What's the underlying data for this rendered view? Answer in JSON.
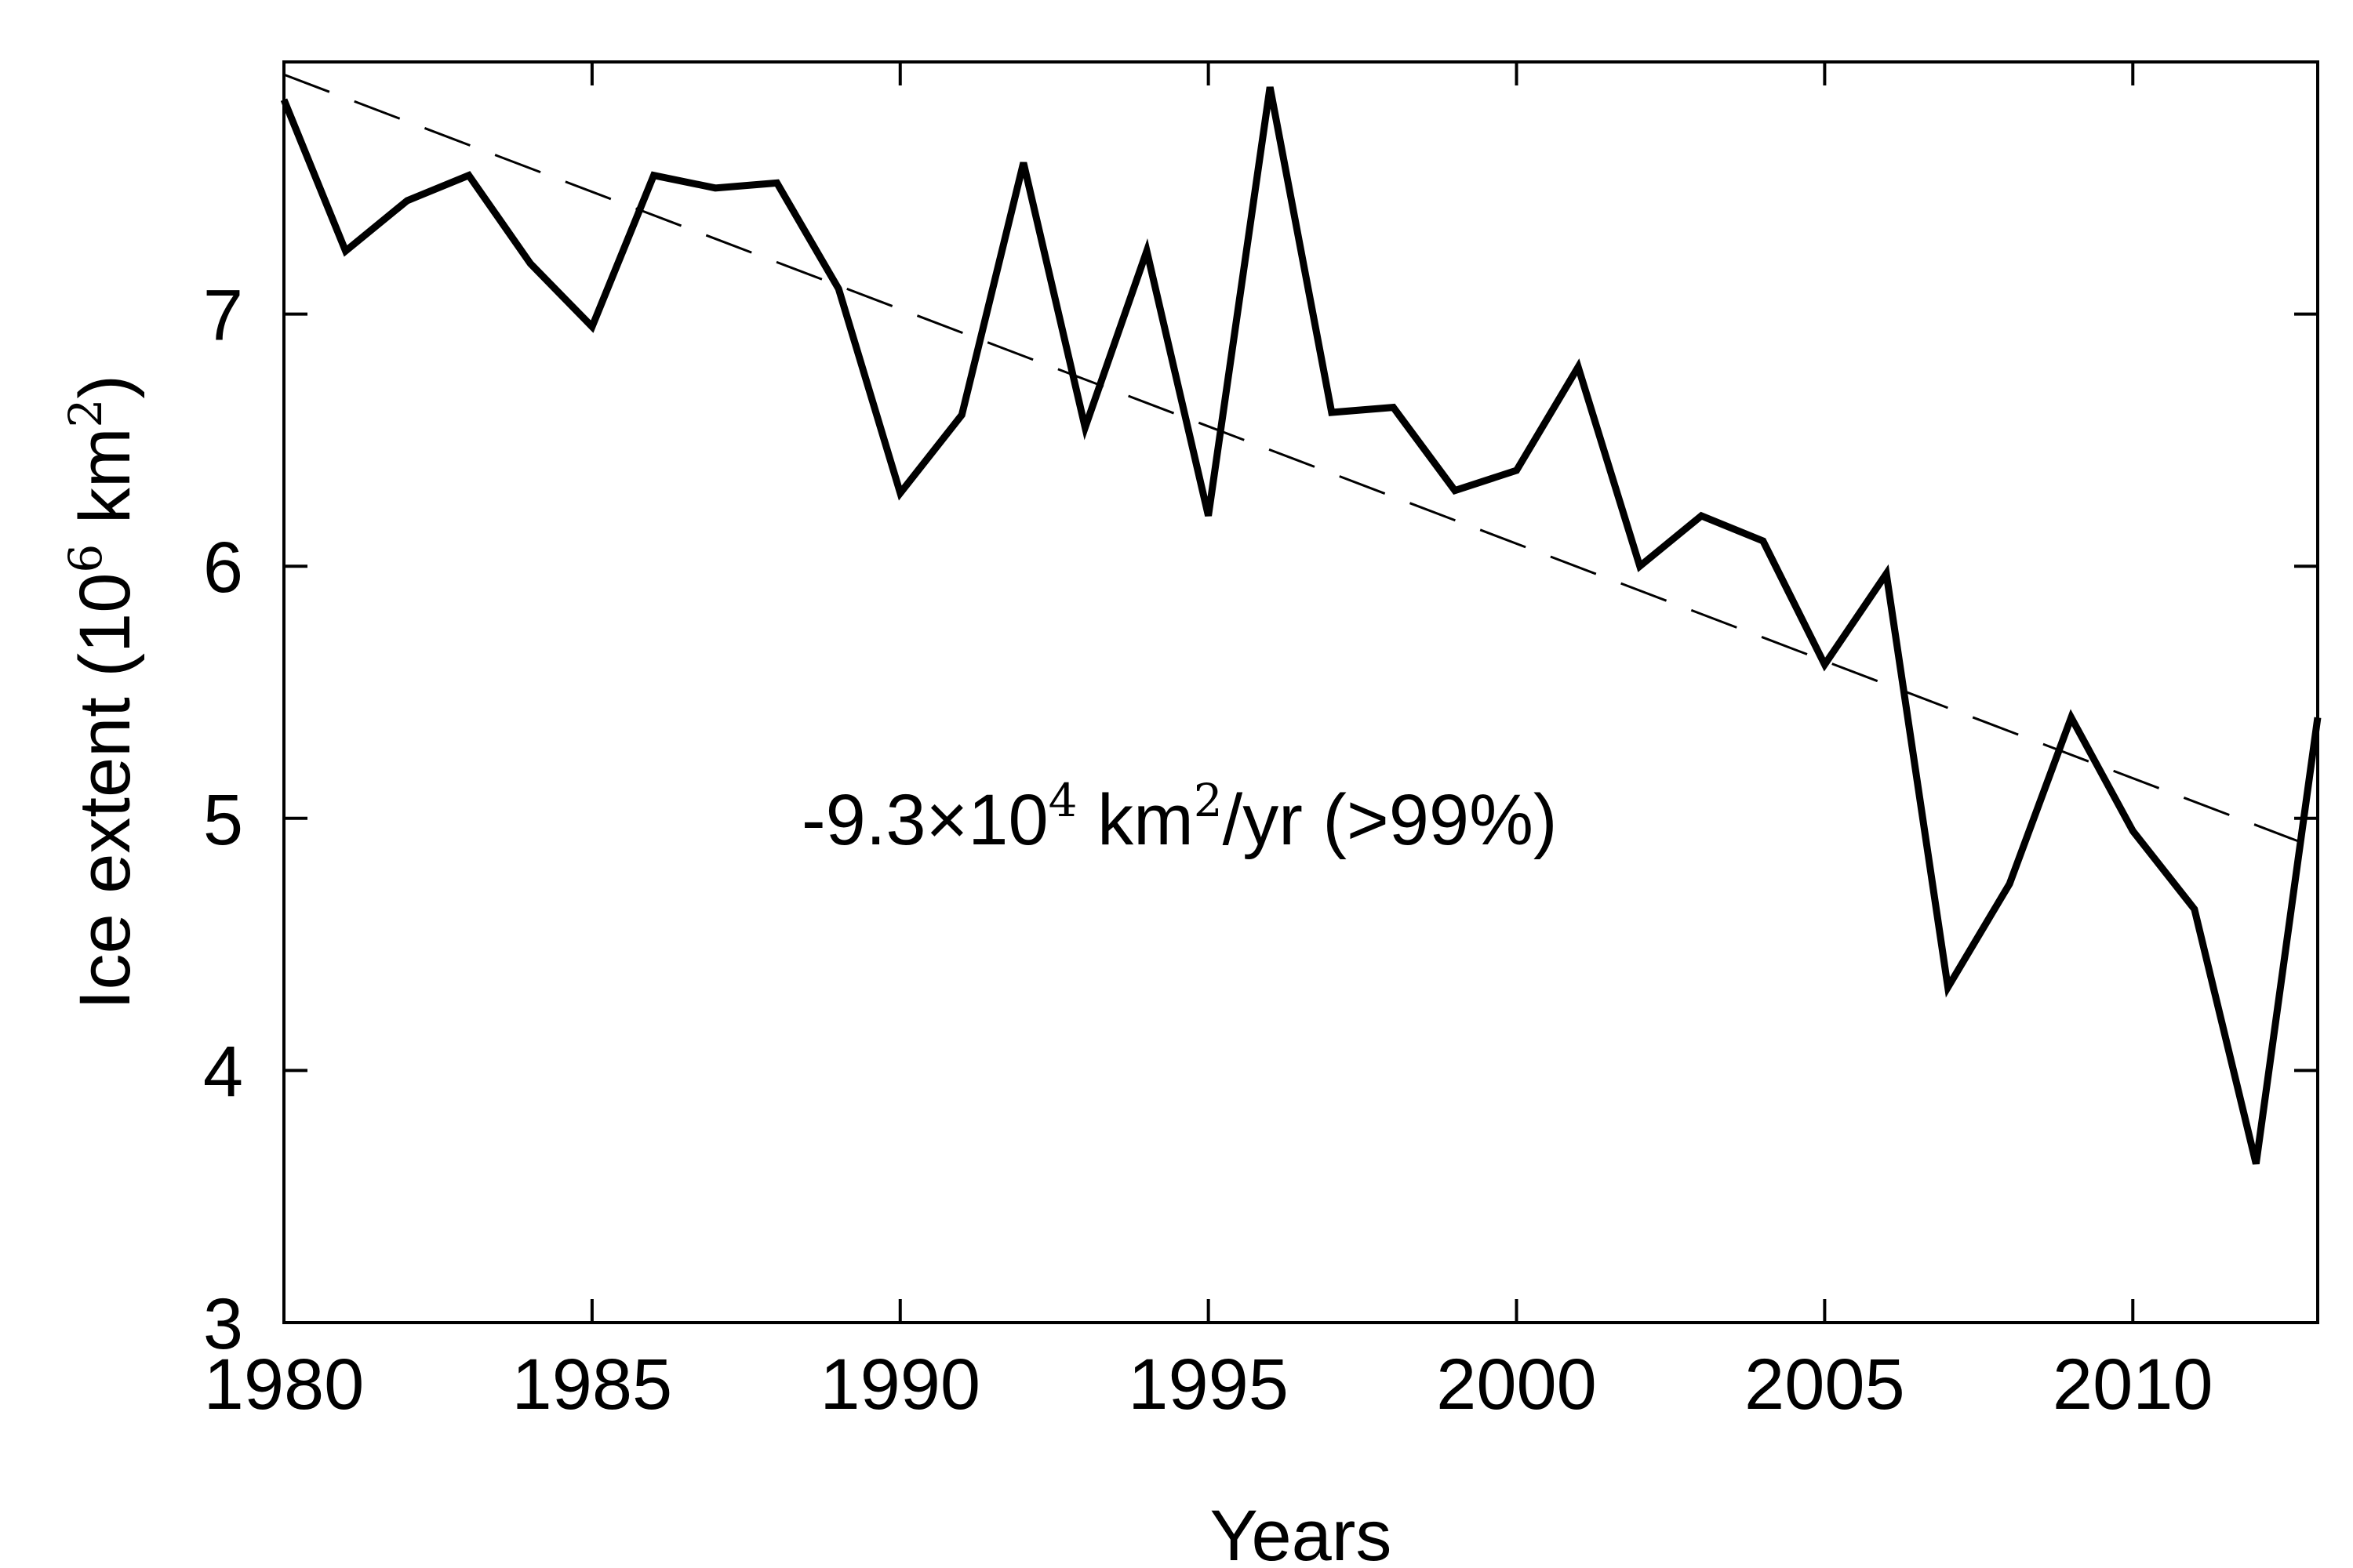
{
  "chart_data": {
    "type": "line",
    "title": "",
    "xlabel": "Years",
    "ylabel": {
      "prefix": "Ice extent (10",
      "exp1": "6",
      "mid": " km",
      "exp2": "2",
      "suffix": ")"
    },
    "xlim": [
      1980,
      2013
    ],
    "ylim": [
      3,
      8
    ],
    "xticks": [
      1980,
      1985,
      1990,
      1995,
      2000,
      2005,
      2010
    ],
    "yticks": [
      3,
      4,
      5,
      6,
      7
    ],
    "grid": false,
    "series": [
      {
        "style": "solid",
        "x": [
          1980,
          1981,
          1982,
          1983,
          1984,
          1985,
          1986,
          1987,
          1988,
          1989,
          1990,
          1991,
          1992,
          1993,
          1994,
          1995,
          1996,
          1997,
          1998,
          1999,
          2000,
          2001,
          2002,
          2003,
          2004,
          2005,
          2006,
          2007,
          2008,
          2009,
          2010,
          2011,
          2012,
          2013
        ],
        "y": [
          7.85,
          7.25,
          7.45,
          7.55,
          7.2,
          6.95,
          7.55,
          7.5,
          7.52,
          7.1,
          6.29,
          6.6,
          7.6,
          6.55,
          7.25,
          6.2,
          7.9,
          6.61,
          6.63,
          6.3,
          6.38,
          6.79,
          6.0,
          6.2,
          6.1,
          5.61,
          5.97,
          4.33,
          4.74,
          5.4,
          4.95,
          4.64,
          3.63,
          5.4
        ]
      },
      {
        "style": "dashed",
        "x": [
          1980,
          2013
        ],
        "y": [
          7.95,
          4.88
        ]
      }
    ],
    "annotation": {
      "pre": "-9.3×10",
      "exp1": "4",
      "mid": " km",
      "exp2": "2",
      "post": "/yr (>99%)",
      "x": 1988.4,
      "y": 5.0
    }
  }
}
